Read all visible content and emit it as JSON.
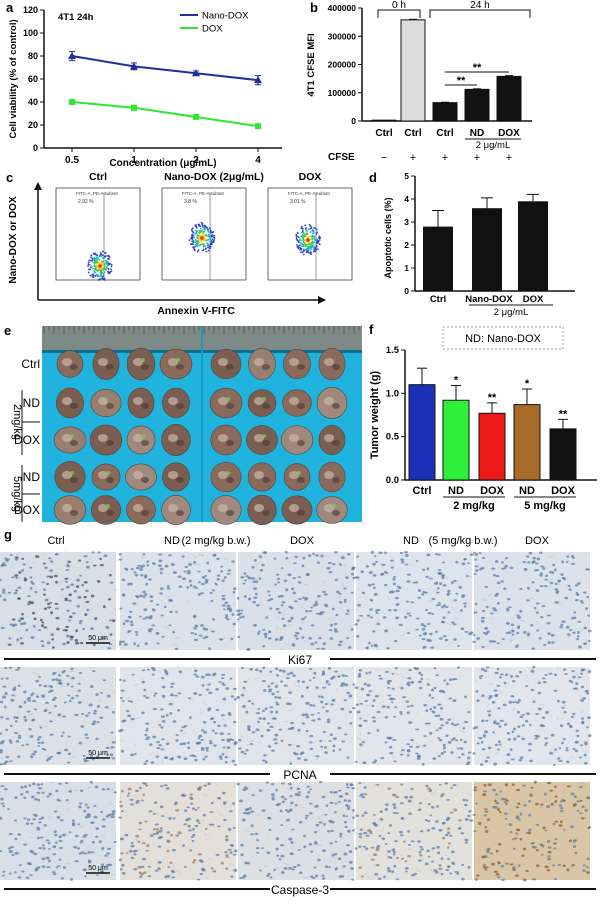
{
  "panel_labels": [
    "a",
    "b",
    "c",
    "d",
    "e",
    "f",
    "g"
  ],
  "chart_data": [
    {
      "panel": "a",
      "type": "line",
      "title": "4T1  24h",
      "xlabel": "Concentration (μg/mL)",
      "ylabel": "Cell viability (% of control)",
      "categories": [
        "0.5",
        "1",
        "2",
        "4"
      ],
      "ylim": [
        0,
        120
      ],
      "yticks": [
        "0",
        "20",
        "40",
        "60",
        "80",
        "100",
        "120"
      ],
      "legend_position": "top-right",
      "series": [
        {
          "name": "Nano-DOX",
          "color": "#1f2fa0",
          "values": [
            80,
            71,
            65,
            59
          ],
          "errors": [
            4,
            3,
            2,
            4
          ]
        },
        {
          "name": "DOX",
          "color": "#2ee82e",
          "values": [
            40,
            35,
            27,
            19
          ],
          "errors": [
            1,
            2,
            1,
            1
          ]
        }
      ]
    },
    {
      "panel": "b",
      "type": "bar",
      "ylabel": "4T1 CFSE MFI",
      "ylim": [
        0,
        400000
      ],
      "yticks": [
        "0",
        "100000",
        "200000",
        "300000",
        "400000"
      ],
      "categories": [
        "Ctrl",
        "Ctrl",
        "Ctrl",
        "ND",
        "DOX"
      ],
      "values": [
        3000,
        358000,
        65000,
        112000,
        158000
      ],
      "errors": [
        0,
        2000,
        1500,
        2000,
        2500
      ],
      "colors": [
        "#dddddd",
        "#dddddd",
        "#111111",
        "#111111",
        "#111111"
      ],
      "group_labels": [
        "0 h",
        "24 h"
      ],
      "conc_label": "2 μg/mL",
      "cfse_label": "CFSE",
      "cfse_signs": [
        "−",
        "+",
        "+",
        "+",
        "+"
      ],
      "significance": [
        "**",
        "**"
      ]
    },
    {
      "panel": "d",
      "type": "bar",
      "ylabel": "Apoptotic cells (%)",
      "ylim": [
        0,
        5
      ],
      "yticks": [
        "0",
        "1",
        "2",
        "3",
        "4",
        "5"
      ],
      "categories": [
        "Ctrl",
        "Nano-DOX",
        "DOX"
      ],
      "values": [
        2.8,
        3.6,
        3.9
      ],
      "errors": [
        0.7,
        0.45,
        0.3
      ],
      "conc_label": "2 μg/mL"
    },
    {
      "panel": "f",
      "type": "bar",
      "ylabel": "Tumor weight (g)",
      "ylim": [
        0,
        1.5
      ],
      "yticks": [
        "0.0",
        "0.5",
        "1.0",
        "1.5"
      ],
      "legend_note": "ND: Nano-DOX",
      "categories": [
        "Ctrl",
        "ND",
        "DOX",
        "ND",
        "DOX"
      ],
      "values": [
        1.1,
        0.92,
        0.77,
        0.87,
        0.59
      ],
      "errors": [
        0.19,
        0.17,
        0.12,
        0.18,
        0.11
      ],
      "colors": [
        "#1c2fb8",
        "#2ef03a",
        "#ee1a1a",
        "#a86b2a",
        "#111111"
      ],
      "significance": [
        "",
        "*",
        "**",
        "*",
        "**"
      ],
      "group_labels": [
        "2 mg/kg",
        "5 mg/kg"
      ]
    }
  ],
  "flow": {
    "ylabel": "Nano-DOX or DOX",
    "xlabel": "Annexin V-FITC",
    "titles": [
      "Ctrl",
      "Nano-DOX (2μg/mL)",
      "DOX"
    ],
    "gate_label": "FITC-A, PE-A subset",
    "percents": [
      "2.92 %",
      "3.8 %",
      "3.01 %"
    ]
  },
  "tumor_photo": {
    "row_labels": [
      "Ctrl",
      "ND",
      "DOX",
      "ND",
      "DOX"
    ],
    "group_labels": [
      "2mg/kg",
      "5mg/kg"
    ]
  },
  "ihc": {
    "column_labels": [
      "Ctrl",
      "ND",
      "(2 mg/kg b.w.)",
      "DOX",
      "ND",
      "(5 mg/kg b.w.)",
      "DOX"
    ],
    "stains": [
      "Ki67",
      "PCNA",
      "Caspase-3"
    ],
    "scale_bar": "50 μm"
  }
}
